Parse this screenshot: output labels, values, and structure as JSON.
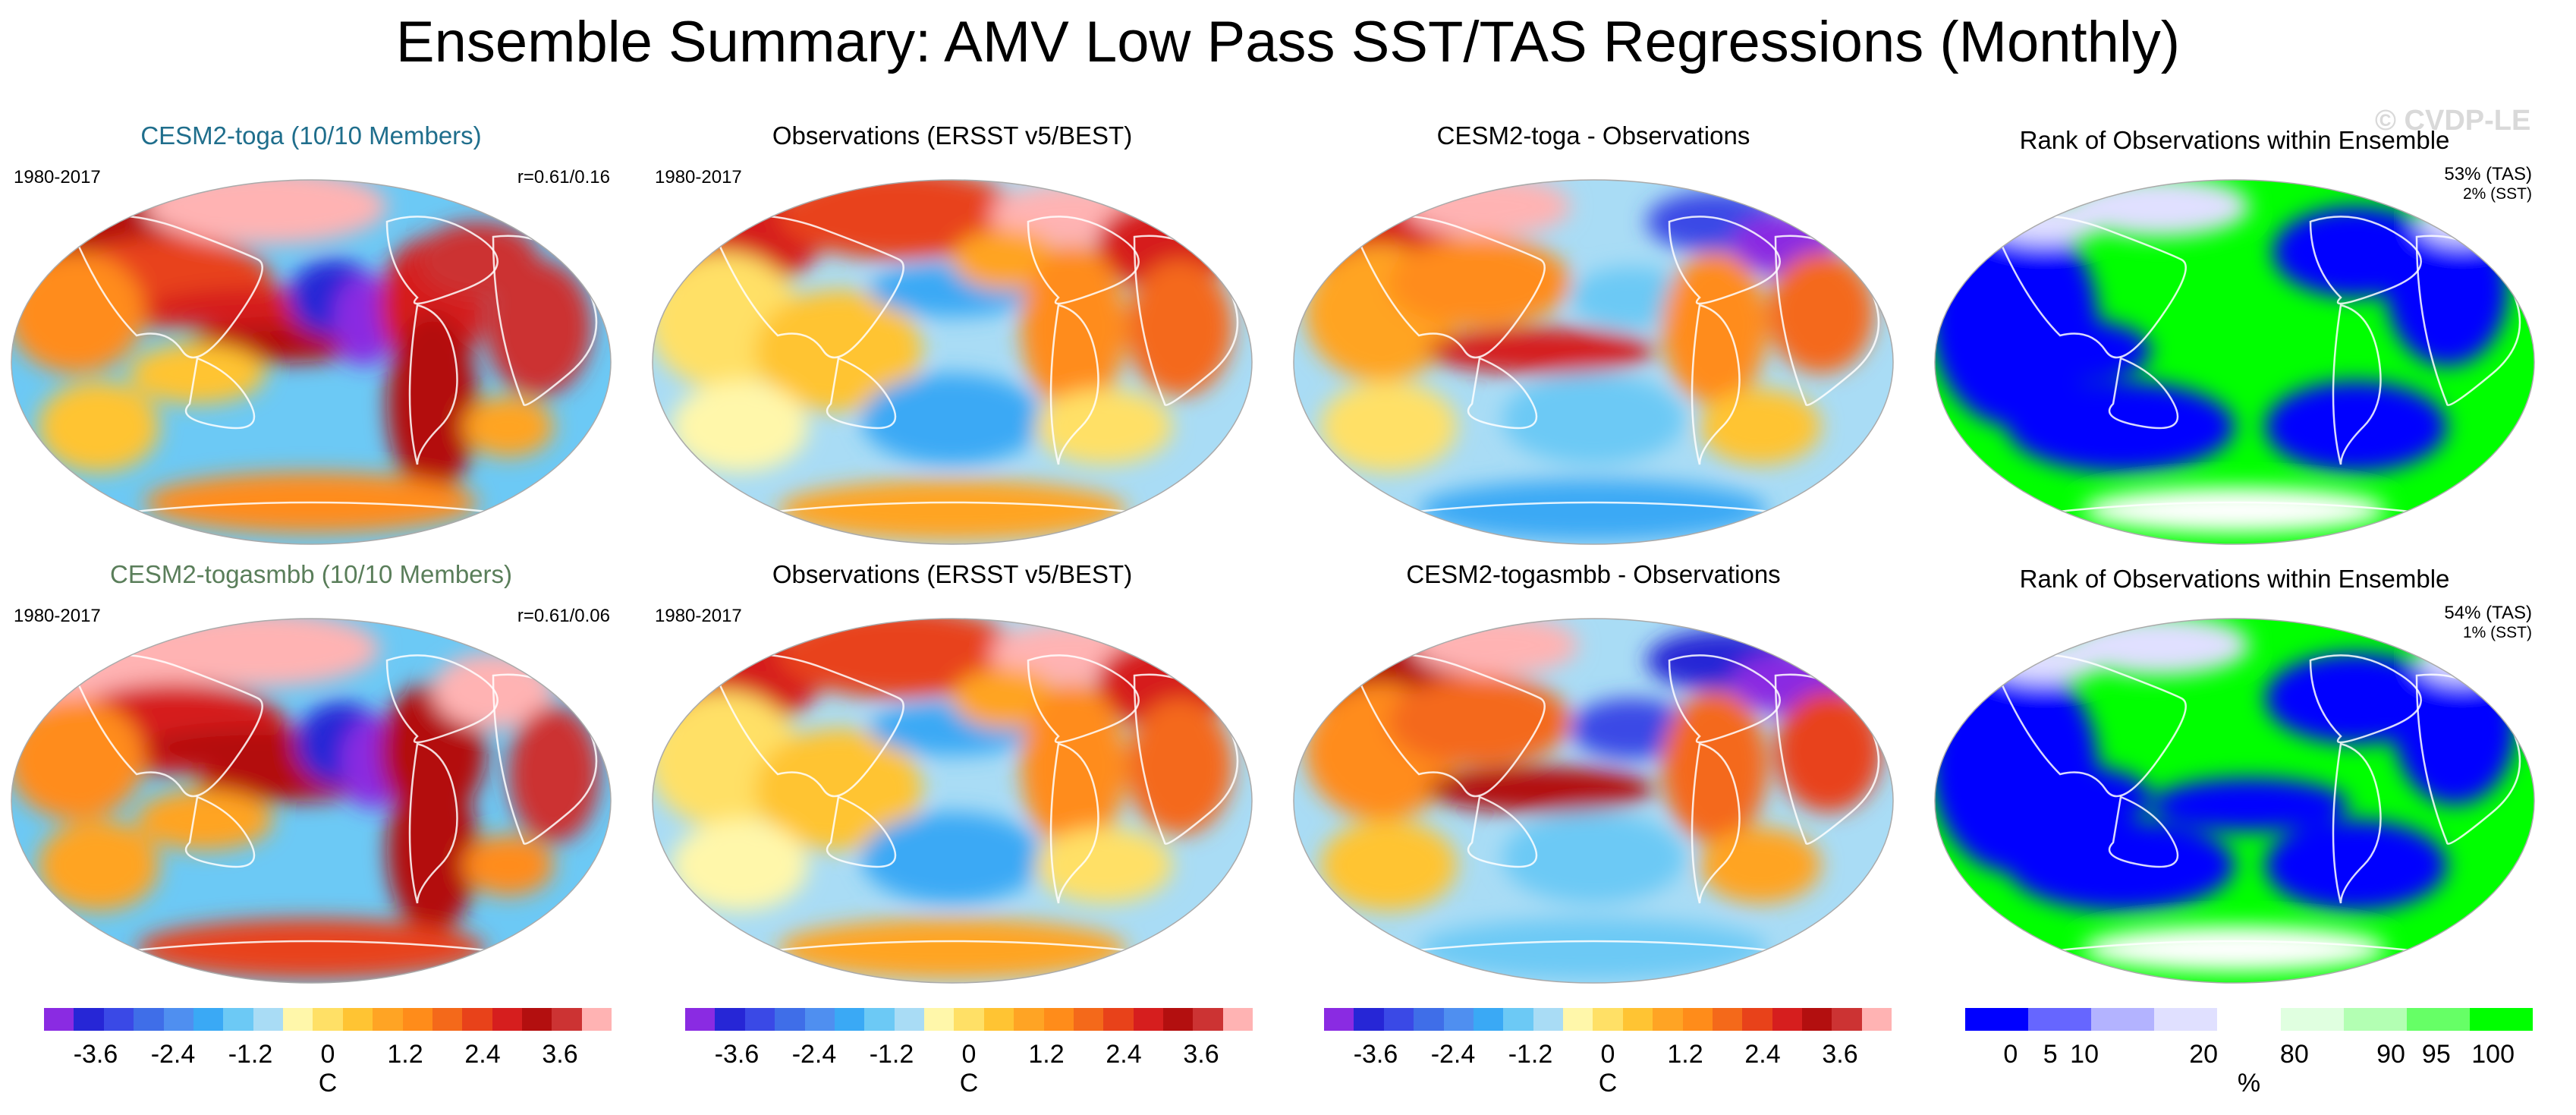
{
  "title": "Ensemble Summary: AMV Low Pass SST/TAS Regressions (Monthly)",
  "watermark": "© CVDP-LE",
  "colors": {
    "temp_scale": [
      "#8a2be2",
      "#2626d6",
      "#3a49e6",
      "#3f6ee8",
      "#4f8ff0",
      "#3aa9f5",
      "#6cc9f5",
      "#a9dcf5",
      "#fff7aa",
      "#ffe066",
      "#ffc433",
      "#ffa424",
      "#ff8c1a",
      "#f4691a",
      "#e8421a",
      "#d61e1e",
      "#b30f0f",
      "#cc3333",
      "#ffb3b3"
    ],
    "rank_scale": [
      "#0000ff",
      "#6666ff",
      "#b3b3ff",
      "#e0e0ff",
      "#ffffff",
      "#e0ffe0",
      "#b3ffb3",
      "#66ff66",
      "#00ff00"
    ],
    "panel_title_1": "#1f6e8c",
    "panel_title_2": "#5a7e5a"
  },
  "chart_data": [
    {
      "type": "heatmap",
      "title": "CESM2-toga (10/10 Members)",
      "period": "1980-2017",
      "stat": "r=0.61/0.16",
      "units": "C",
      "pattern": "model1"
    },
    {
      "type": "heatmap",
      "title": "Observations (ERSST v5/BEST)",
      "period": "1980-2017",
      "units": "C",
      "pattern": "obs"
    },
    {
      "type": "heatmap",
      "title": "CESM2-toga - Observations",
      "units": "C",
      "pattern": "diff1"
    },
    {
      "type": "heatmap",
      "title": "Rank of Observations within Ensemble",
      "rank_tas": "53% (TAS)",
      "rank_sst": "2% (SST)",
      "units": "%",
      "pattern": "rank1"
    },
    {
      "type": "heatmap",
      "title": "CESM2-togasmbb (10/10 Members)",
      "period": "1980-2017",
      "stat": "r=0.61/0.06",
      "units": "C",
      "pattern": "model2"
    },
    {
      "type": "heatmap",
      "title": "Observations (ERSST v5/BEST)",
      "period": "1980-2017",
      "units": "C",
      "pattern": "obs"
    },
    {
      "type": "heatmap",
      "title": "CESM2-togasmbb - Observations",
      "units": "C",
      "pattern": "diff2"
    },
    {
      "type": "heatmap",
      "title": "Rank of Observations within Ensemble",
      "rank_tas": "54% (TAS)",
      "rank_sst": "1% (SST)",
      "units": "%",
      "pattern": "rank2"
    }
  ],
  "colorbars": [
    {
      "units": "C",
      "ticks": [
        "-3.6",
        "-2.4",
        "-1.2",
        "0",
        "1.2",
        "2.4",
        "3.6"
      ],
      "tick_values": [
        -3.6,
        -2.4,
        -1.2,
        0,
        1.2,
        2.4,
        3.6
      ],
      "range": [
        -4.4,
        4.4
      ]
    },
    {
      "units": "C",
      "ticks": [
        "-3.6",
        "-2.4",
        "-1.2",
        "0",
        "1.2",
        "2.4",
        "3.6"
      ],
      "tick_values": [
        -3.6,
        -2.4,
        -1.2,
        0,
        1.2,
        2.4,
        3.6
      ],
      "range": [
        -4.4,
        4.4
      ]
    },
    {
      "units": "C",
      "ticks": [
        "-3.6",
        "-2.4",
        "-1.2",
        "0",
        "1.2",
        "2.4",
        "3.6"
      ],
      "tick_values": [
        -3.6,
        -2.4,
        -1.2,
        0,
        1.2,
        2.4,
        3.6
      ],
      "range": [
        -4.4,
        4.4
      ]
    },
    {
      "units": "%",
      "ticks": [
        "0",
        "5",
        "10",
        "20",
        "80",
        "90",
        "95",
        "100"
      ]
    }
  ]
}
